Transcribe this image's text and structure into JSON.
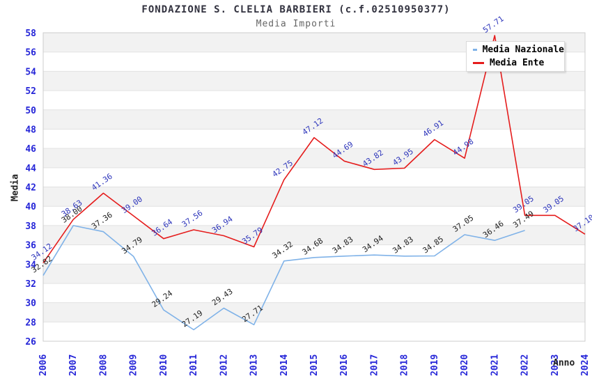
{
  "chart_data": {
    "type": "line",
    "title": "FONDAZIONE S. CLELIA BARBIERI (c.f.02510950377)",
    "subtitle": "Media Importi",
    "xlabel": "Anno",
    "ylabel": "Media",
    "categories": [
      "2006",
      "2007",
      "2008",
      "2009",
      "2010",
      "2011",
      "2012",
      "2013",
      "2014",
      "2015",
      "2016",
      "2017",
      "2018",
      "2019",
      "2020",
      "2021",
      "2022",
      "2023",
      "2024"
    ],
    "ylim": [
      26,
      58
    ],
    "ytick_step": 2,
    "grid": "horizontal-bands",
    "legend_position": "top-right",
    "colors": {
      "tick_label": "#2525d8",
      "band_fill": "#f2f2f2",
      "gridline": "#e2e2e2",
      "plot_border": "#cccccc",
      "title": "#32323f",
      "subtitle": "#666666"
    },
    "series": [
      {
        "name": "Media Nazionale",
        "color": "#7fb2e8",
        "label_color": "#222222",
        "values": [
          32.82,
          38.0,
          37.36,
          34.79,
          29.24,
          27.19,
          29.43,
          27.71,
          34.32,
          34.68,
          34.83,
          34.94,
          34.83,
          34.85,
          37.05,
          36.46,
          37.49,
          null,
          null
        ]
      },
      {
        "name": "Media Ente",
        "color": "#e51c1c",
        "label_color": "#2d35bb",
        "values": [
          34.12,
          38.63,
          41.36,
          39.0,
          36.64,
          37.56,
          36.94,
          35.79,
          42.75,
          47.12,
          44.69,
          43.82,
          43.95,
          46.91,
          44.98,
          57.71,
          39.05,
          39.05,
          37.1
        ]
      }
    ]
  }
}
